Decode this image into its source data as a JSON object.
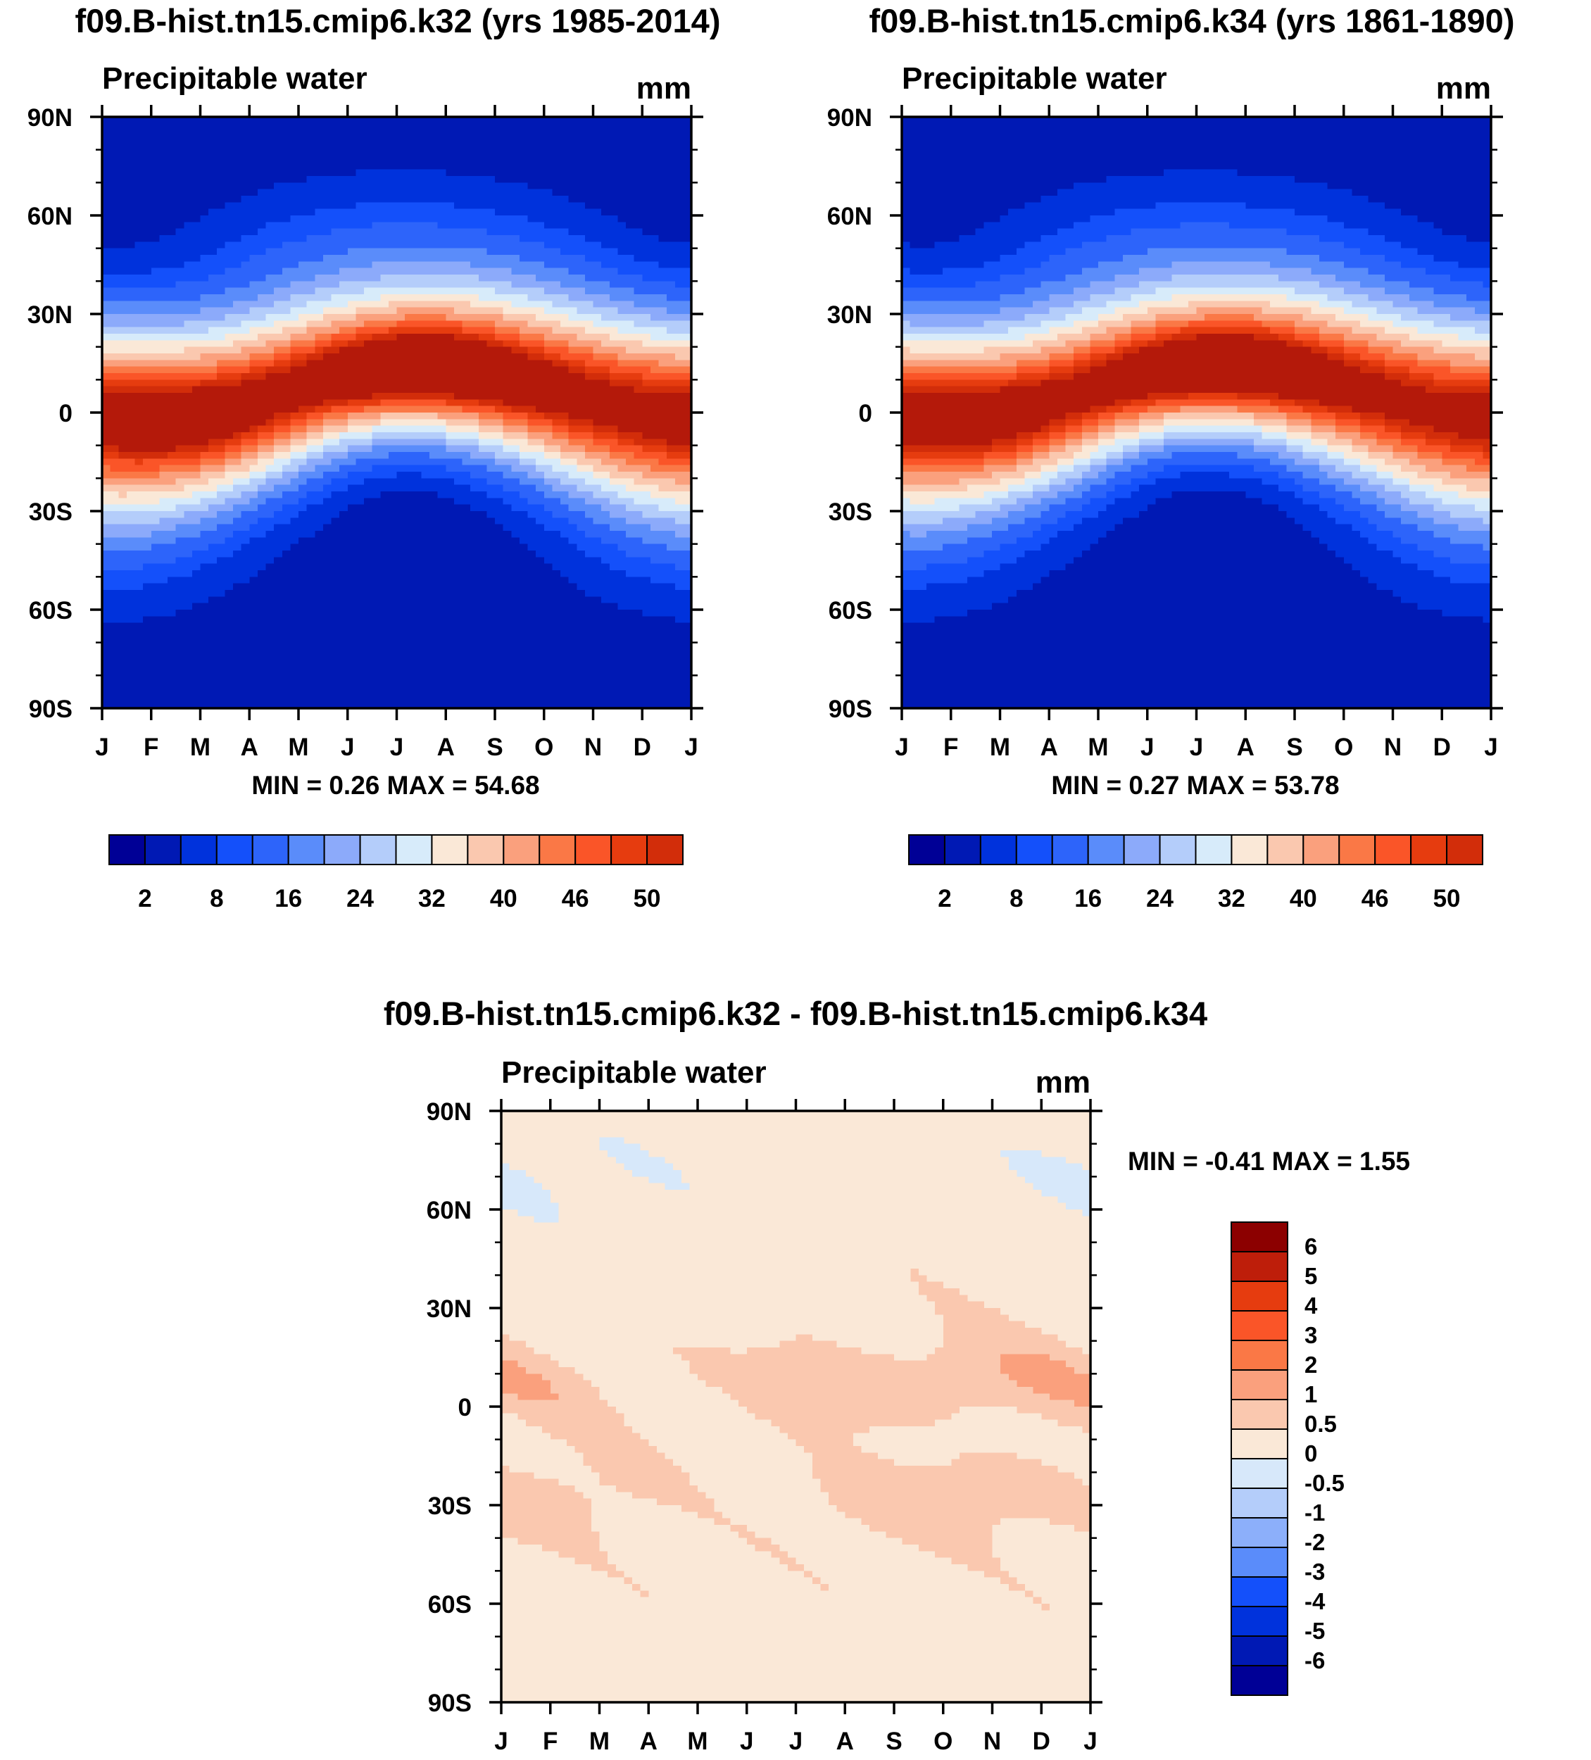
{
  "chart_data": [
    {
      "type": "heatmap",
      "title": "f09.B-hist.tn15.cmip6.k32 (yrs 1985-2014)",
      "variable": "Precipitable water",
      "units": "mm",
      "x_tick_labels": [
        "J",
        "F",
        "M",
        "A",
        "M",
        "J",
        "J",
        "A",
        "S",
        "O",
        "N",
        "D",
        "J"
      ],
      "y_tick_labels": [
        "90N",
        "60N",
        "30N",
        "0",
        "30S",
        "60S",
        "90S"
      ],
      "ylim": [
        -90,
        90
      ],
      "min_label": "MIN =   0.26 MAX =  54.68",
      "min": 0.26,
      "max": 54.68,
      "colorbar_labels": [
        "2",
        "8",
        "16",
        "24",
        "32",
        "40",
        "46",
        "50"
      ],
      "colorbar_levels": [
        2,
        5,
        8,
        12,
        16,
        20,
        24,
        28,
        32,
        36,
        40,
        43,
        46,
        48,
        50
      ]
    },
    {
      "type": "heatmap",
      "title": "f09.B-hist.tn15.cmip6.k34 (yrs 1861-1890)",
      "variable": "Precipitable water",
      "units": "mm",
      "x_tick_labels": [
        "J",
        "F",
        "M",
        "A",
        "M",
        "J",
        "J",
        "A",
        "S",
        "O",
        "N",
        "D",
        "J"
      ],
      "y_tick_labels": [
        "90N",
        "60N",
        "30N",
        "0",
        "30S",
        "60S",
        "90S"
      ],
      "ylim": [
        -90,
        90
      ],
      "min_label": "MIN =   0.27 MAX =  53.78",
      "min": 0.27,
      "max": 53.78,
      "colorbar_labels": [
        "2",
        "8",
        "16",
        "24",
        "32",
        "40",
        "46",
        "50"
      ],
      "colorbar_levels": [
        2,
        5,
        8,
        12,
        16,
        20,
        24,
        28,
        32,
        36,
        40,
        43,
        46,
        48,
        50
      ]
    },
    {
      "type": "heatmap",
      "title": "f09.B-hist.tn15.cmip6.k32 - f09.B-hist.tn15.cmip6.k34",
      "variable": "Precipitable water",
      "units": "mm",
      "x_tick_labels": [
        "J",
        "F",
        "M",
        "A",
        "M",
        "J",
        "J",
        "A",
        "S",
        "O",
        "N",
        "D",
        "J"
      ],
      "y_tick_labels": [
        "90N",
        "60N",
        "30N",
        "0",
        "30S",
        "60S",
        "90S"
      ],
      "ylim": [
        -90,
        90
      ],
      "min_label": "MIN =  -0.41 MAX =   1.55",
      "min": -0.41,
      "max": 1.55,
      "colorbar_labels": [
        "6",
        "5",
        "4",
        "3",
        "2",
        "1",
        "0.5",
        "0",
        "-0.5",
        "-1",
        "-2",
        "-3",
        "-4",
        "-5",
        "-6"
      ],
      "colorbar_levels": [
        -6,
        -5,
        -4,
        -3,
        -2,
        -1,
        -0.5,
        0,
        0.5,
        1,
        2,
        3,
        4,
        5,
        6
      ]
    }
  ],
  "palette": [
    "#000096",
    "#0019B4",
    "#0035DC",
    "#1450FA",
    "#3C73FA",
    "#6496FA",
    "#8CAFFA",
    "#B4CDFA",
    "#D7E8FA",
    "#FAE6D2",
    "#FAC8AF",
    "#FAAA8C",
    "#FA825F",
    "#FA6432",
    "#F0461E",
    "#DC320F",
    "#BE1E0A",
    "#8C0000"
  ]
}
